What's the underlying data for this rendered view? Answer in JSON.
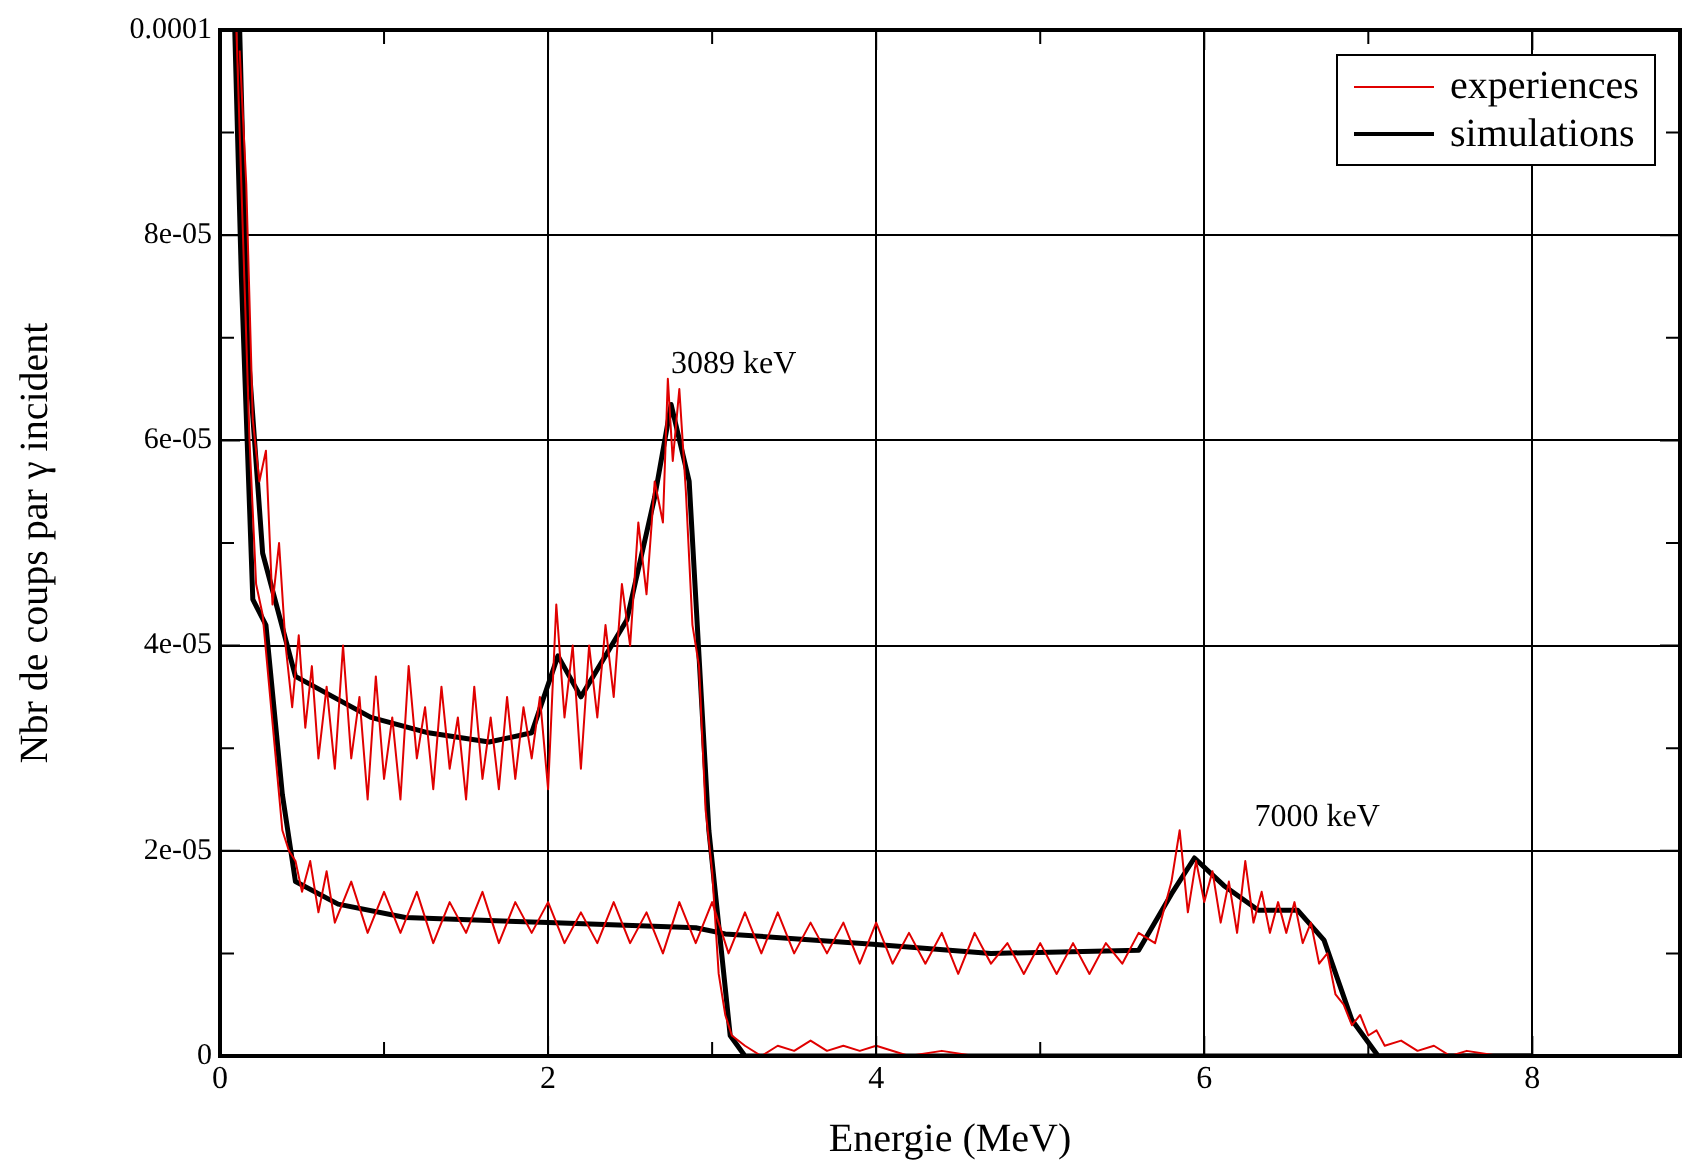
{
  "chart_data": {
    "type": "line",
    "xlabel": "Energie (MeV)",
    "ylabel": "Nbr de coups par γ incident",
    "xlim": [
      0,
      8.9
    ],
    "xticks": [
      0,
      {
        "value": 1,
        "label": null
      },
      2,
      {
        "value": 3,
        "label": null
      },
      4,
      {
        "value": 5,
        "label": null
      },
      6,
      {
        "value": 7,
        "label": null
      },
      8
    ],
    "ylim": [
      0,
      0.0001
    ],
    "yticks": [
      0,
      {
        "value": 1e-05,
        "label": null
      },
      {
        "value": 2e-05,
        "label": "2e-05"
      },
      {
        "value": 3e-05,
        "label": null
      },
      {
        "value": 4e-05,
        "label": "4e-05"
      },
      {
        "value": 5e-05,
        "label": null
      },
      {
        "value": 6e-05,
        "label": "6e-05"
      },
      {
        "value": 7e-05,
        "label": null
      },
      {
        "value": 8e-05,
        "label": "8e-05"
      },
      {
        "value": 9e-05,
        "label": null
      },
      0.0001
    ],
    "grid": true,
    "legend": "top right",
    "marker": "none",
    "line_style": "solid",
    "annotations": [
      {
        "text": "3089 keV",
        "x": 2.75,
        "y": 6.35e-05
      },
      {
        "text": "7000 keV",
        "x": 5.94,
        "y": 1.93e-05
      }
    ],
    "series": [
      {
        "name": "experiences",
        "color": "#e00000",
        "x": [
          0.12,
          0.16,
          0.2,
          0.24,
          0.28,
          0.32,
          0.36,
          0.4,
          0.44,
          0.48,
          0.52,
          0.56,
          0.6,
          0.65,
          0.7,
          0.75,
          0.8,
          0.85,
          0.9,
          0.95,
          1.0,
          1.05,
          1.1,
          1.15,
          1.2,
          1.25,
          1.3,
          1.35,
          1.4,
          1.45,
          1.5,
          1.55,
          1.6,
          1.65,
          1.7,
          1.75,
          1.8,
          1.85,
          1.9,
          1.95,
          2.0,
          2.05,
          2.1,
          2.15,
          2.2,
          2.25,
          2.3,
          2.35,
          2.4,
          2.45,
          2.5,
          2.55,
          2.6,
          2.65,
          2.7,
          2.73,
          2.76,
          2.8,
          2.84,
          2.88,
          2.92,
          2.96,
          3.0,
          3.04,
          3.08,
          3.12,
          3.2,
          3.3,
          3.4,
          3.5,
          3.6,
          3.7,
          3.8,
          3.9,
          4.0,
          4.2,
          4.4,
          4.6
        ],
        "values": [
          9.8e-05,
          8.5e-05,
          6.2e-05,
          5.6e-05,
          5.9e-05,
          4.4e-05,
          5e-05,
          4e-05,
          3.4e-05,
          4.1e-05,
          3.2e-05,
          3.8e-05,
          2.9e-05,
          3.6e-05,
          2.8e-05,
          4e-05,
          2.9e-05,
          3.5e-05,
          2.5e-05,
          3.7e-05,
          2.7e-05,
          3.3e-05,
          2.5e-05,
          3.8e-05,
          2.9e-05,
          3.4e-05,
          2.6e-05,
          3.6e-05,
          2.8e-05,
          3.3e-05,
          2.5e-05,
          3.6e-05,
          2.7e-05,
          3.3e-05,
          2.6e-05,
          3.5e-05,
          2.7e-05,
          3.4e-05,
          2.9e-05,
          3.5e-05,
          2.6e-05,
          4.4e-05,
          3.3e-05,
          4e-05,
          2.8e-05,
          4e-05,
          3.3e-05,
          4.2e-05,
          3.5e-05,
          4.6e-05,
          4e-05,
          5.2e-05,
          4.5e-05,
          5.6e-05,
          5.2e-05,
          6.6e-05,
          5.8e-05,
          6.5e-05,
          5.5e-05,
          4.2e-05,
          3.8e-05,
          2.4e-05,
          1.8e-05,
          8e-06,
          4e-06,
          2e-06,
          1e-06,
          0,
          1e-06,
          5e-07,
          1.5e-06,
          5e-07,
          1e-06,
          5e-07,
          1e-06,
          0,
          5e-07,
          0
        ]
      },
      {
        "color": "#e00000",
        "x": [
          0.1,
          0.14,
          0.18,
          0.22,
          0.26,
          0.3,
          0.34,
          0.38,
          0.42,
          0.46,
          0.5,
          0.55,
          0.6,
          0.65,
          0.7,
          0.8,
          0.9,
          1.0,
          1.1,
          1.2,
          1.3,
          1.4,
          1.5,
          1.6,
          1.7,
          1.8,
          1.9,
          2.0,
          2.1,
          2.2,
          2.3,
          2.4,
          2.5,
          2.6,
          2.7,
          2.8,
          2.9,
          3.0,
          3.1,
          3.2,
          3.3,
          3.4,
          3.5,
          3.6,
          3.7,
          3.8,
          3.9,
          4.0,
          4.1,
          4.2,
          4.3,
          4.4,
          4.5,
          4.6,
          4.7,
          4.8,
          4.9,
          5.0,
          5.1,
          5.2,
          5.3,
          5.4,
          5.5,
          5.6,
          5.7,
          5.8,
          5.85,
          5.9,
          5.95,
          6.0,
          6.05,
          6.1,
          6.15,
          6.2,
          6.25,
          6.3,
          6.35,
          6.4,
          6.45,
          6.5,
          6.55,
          6.6,
          6.65,
          6.7,
          6.75,
          6.8,
          6.85,
          6.9,
          6.95,
          7.0,
          7.05,
          7.1,
          7.2,
          7.3,
          7.4,
          7.5,
          7.6,
          7.8
        ],
        "values": [
          0.0001,
          8e-05,
          6e-05,
          4.6e-05,
          4.3e-05,
          3.6e-05,
          2.9e-05,
          2.2e-05,
          2e-05,
          1.9e-05,
          1.6e-05,
          1.9e-05,
          1.4e-05,
          1.8e-05,
          1.3e-05,
          1.7e-05,
          1.2e-05,
          1.6e-05,
          1.2e-05,
          1.6e-05,
          1.1e-05,
          1.5e-05,
          1.2e-05,
          1.6e-05,
          1.1e-05,
          1.5e-05,
          1.2e-05,
          1.5e-05,
          1.1e-05,
          1.4e-05,
          1.1e-05,
          1.5e-05,
          1.1e-05,
          1.4e-05,
          1e-05,
          1.5e-05,
          1.1e-05,
          1.5e-05,
          1e-05,
          1.4e-05,
          1e-05,
          1.4e-05,
          1e-05,
          1.3e-05,
          1e-05,
          1.3e-05,
          9e-06,
          1.3e-05,
          9e-06,
          1.2e-05,
          9e-06,
          1.2e-05,
          8e-06,
          1.2e-05,
          9e-06,
          1.1e-05,
          8e-06,
          1.1e-05,
          8e-06,
          1.1e-05,
          8e-06,
          1.1e-05,
          9e-06,
          1.2e-05,
          1.1e-05,
          1.7e-05,
          2.2e-05,
          1.4e-05,
          1.9e-05,
          1.5e-05,
          1.8e-05,
          1.3e-05,
          1.7e-05,
          1.2e-05,
          1.9e-05,
          1.3e-05,
          1.6e-05,
          1.2e-05,
          1.5e-05,
          1.2e-05,
          1.5e-05,
          1.1e-05,
          1.3e-05,
          9e-06,
          1e-05,
          6e-06,
          5e-06,
          3e-06,
          4e-06,
          2e-06,
          2.5e-06,
          1e-06,
          1.5e-06,
          5e-07,
          1e-06,
          0,
          5e-07,
          0
        ]
      },
      {
        "name": "simulations",
        "color": "#000000",
        "x": [
          0.12,
          0.17,
          0.26,
          0.46,
          0.92,
          1.27,
          1.64,
          1.9,
          2.06,
          2.2,
          2.48,
          2.65,
          2.75,
          2.86,
          2.98,
          3.11,
          3.2,
          4.0,
          6.0,
          8.0
        ],
        "values": [
          0.0001,
          6.9e-05,
          4.9e-05,
          3.7e-05,
          3.3e-05,
          3.15e-05,
          3.06e-05,
          3.15e-05,
          3.9e-05,
          3.5e-05,
          4.25e-05,
          5.45e-05,
          6.35e-05,
          5.6e-05,
          2.2e-05,
          2e-06,
          0,
          0,
          0,
          0
        ]
      },
      {
        "color": "#000000",
        "x": [
          0.09,
          0.13,
          0.2,
          0.28,
          0.38,
          0.46,
          0.72,
          1.13,
          2.0,
          2.9,
          3.08,
          3.98,
          4.7,
          5.6,
          5.8,
          5.94,
          6.12,
          6.33,
          6.57,
          6.73,
          6.9,
          7.06,
          8.0
        ],
        "values": [
          0.0001,
          7.6e-05,
          4.45e-05,
          4.2e-05,
          2.55e-05,
          1.7e-05,
          1.48e-05,
          1.35e-05,
          1.3e-05,
          1.25e-05,
          1.19e-05,
          1.09e-05,
          1e-05,
          1.03e-05,
          1.58e-05,
          1.93e-05,
          1.66e-05,
          1.42e-05,
          1.42e-05,
          1.13e-05,
          3.5e-06,
          0,
          0
        ]
      }
    ]
  }
}
